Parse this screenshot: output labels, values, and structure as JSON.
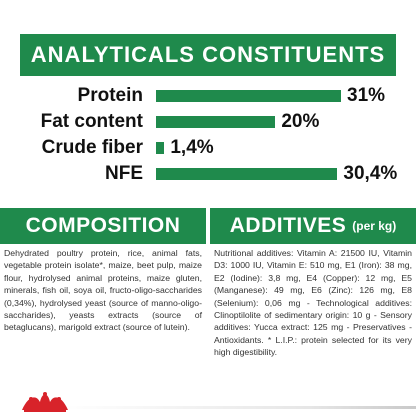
{
  "header": {
    "title": "ANALYTICALS CONSTITUENTS"
  },
  "analytics": [
    {
      "label": "Protein",
      "value": "31%",
      "level": 31
    },
    {
      "label": "Fat content",
      "value": "20%",
      "level": 20
    },
    {
      "label": "Crude fiber",
      "value": "1,4%",
      "level": 1.4
    },
    {
      "label": "NFE",
      "value": "30,4%",
      "level": 30.4
    }
  ],
  "composition": {
    "title": "COMPOSITION",
    "text": "Dehydrated poultry protein, rice, animal fats, vegetable protein isolate*, maize, beet pulp, maize flour, hydrolysed animal proteins, maize gluten, minerals, fish oil, soya oil, fructo-oligo-saccharides (0,34%), hydrolysed yeast (source of manno-oligo-saccharides), yeasts extracts (source of betaglucans), marigold extract (source of lutein)."
  },
  "additives": {
    "title": "ADDITIVES",
    "subtitle": "(per kg)",
    "text": "Nutritional additives: Vitamin A: 21500 IU, Vitamin D3: 1000 IU, Vitamin E: 510 mg, E1 (Iron): 38 mg, E2 (Iodine): 3,8 mg, E4 (Copper): 12 mg, E5 (Manganese): 49 mg, E6 (Zinc): 126 mg, E8 (Selenium): 0,06 mg - Technological additives: Clinoptilolite of sedimentary origin: 10 g - Sensory additives: Yucca extract: 125 mg - Preservatives - Antioxidants. * L.I.P.: protein selected for its very high digestibility."
  },
  "colors": {
    "brand_green": "#1f8a4c",
    "logo_red": "#d8232a"
  },
  "icons": {
    "logo": "crown-logo-icon"
  }
}
